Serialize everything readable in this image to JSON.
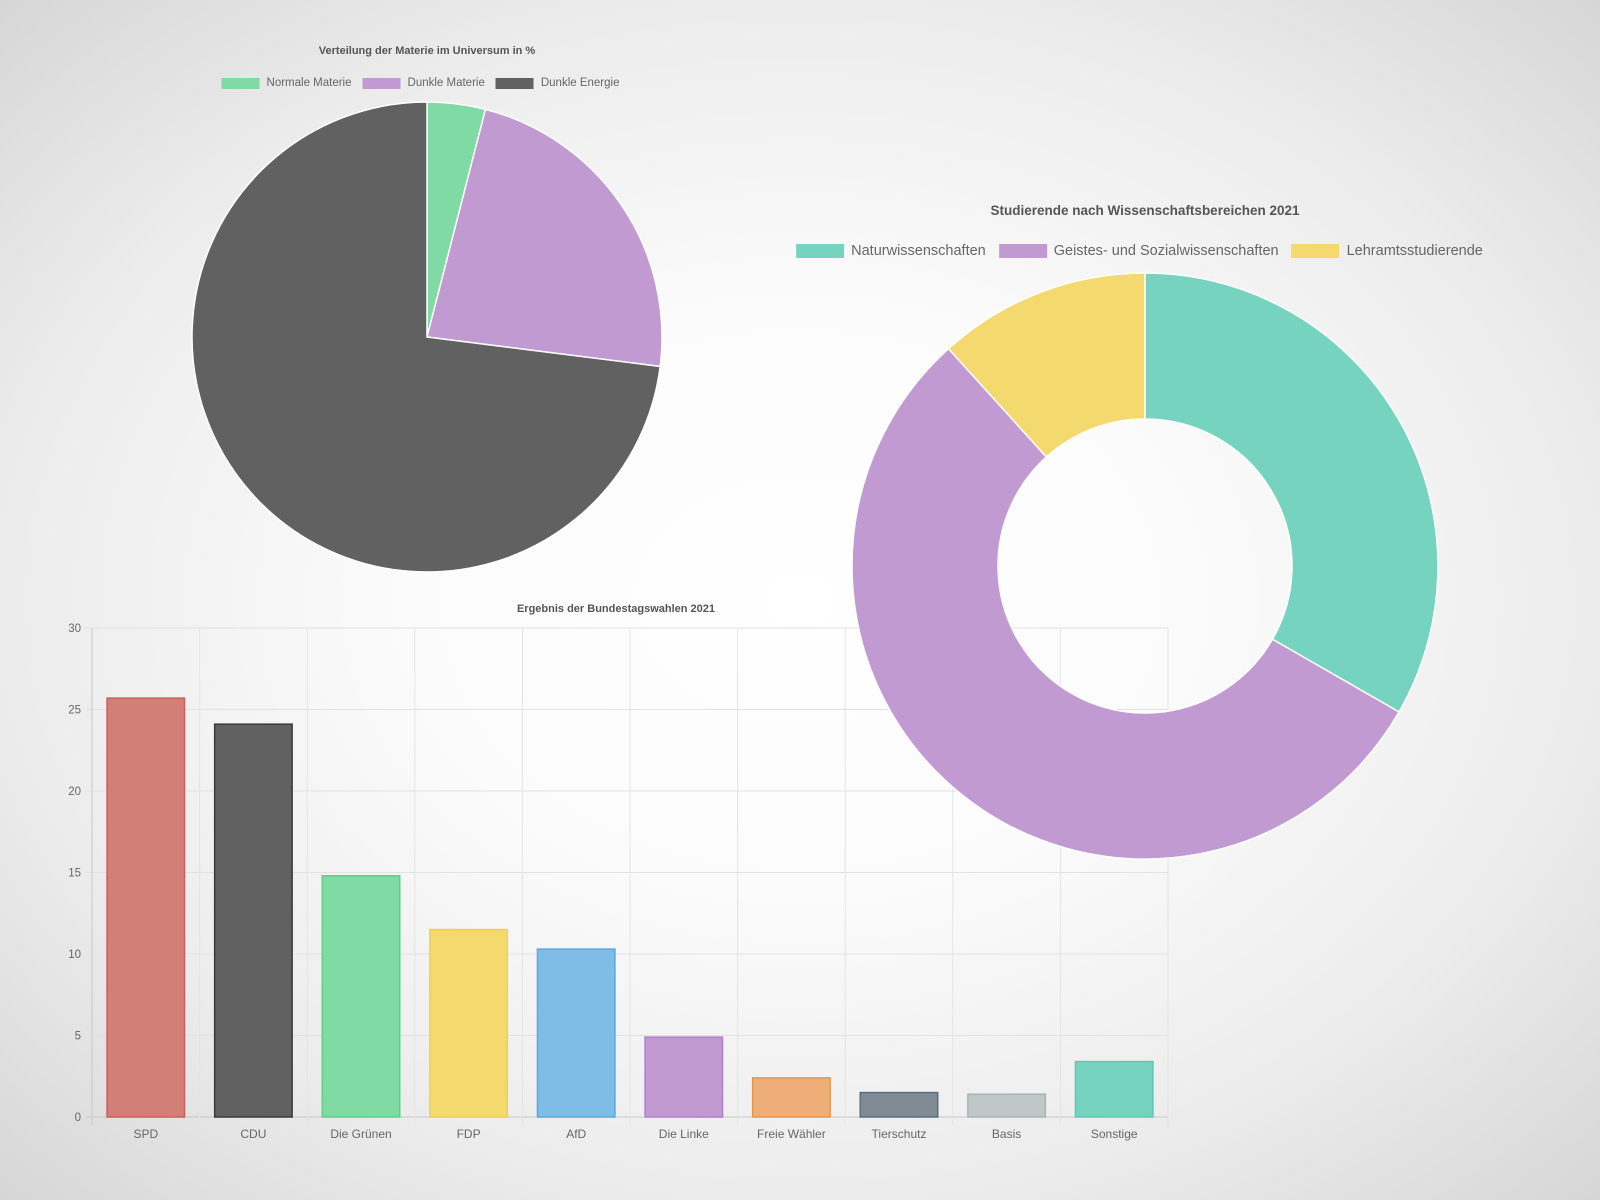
{
  "chart_data": [
    {
      "type": "pie",
      "title": "Verteilung der Materie im Universum in %",
      "categories": [
        "Normale Materie",
        "Dunkle Materie",
        "Dunkle Energie"
      ],
      "values": [
        4,
        23,
        73
      ],
      "colors": [
        "#7fdba3",
        "#c29ad2",
        "#616161"
      ],
      "legend_position": "top"
    },
    {
      "type": "doughnut",
      "title": "Studierende nach Wissenschaftsbereichen 2021",
      "categories": [
        "Naturwissenschaften",
        "Geistes- und Sozialwissenschaften",
        "Lehramtsstudierende"
      ],
      "values": [
        33.3,
        55,
        11.7
      ],
      "colors": [
        "#76d3c0",
        "#c29ad2",
        "#f4d96e"
      ],
      "legend_position": "top"
    },
    {
      "type": "bar",
      "title": "Ergebnis der Bundestagswahlen 2021",
      "categories": [
        "SPD",
        "CDU",
        "Die Grünen",
        "FDP",
        "AfD",
        "Die Linke",
        "Freie Wähler",
        "Tierschutz",
        "Basis",
        "Sonstige"
      ],
      "values": [
        25.7,
        24.1,
        14.8,
        11.5,
        10.3,
        4.9,
        2.4,
        1.5,
        1.4,
        3.4
      ],
      "colors": [
        "#d27f78",
        "#616161",
        "#7fdba3",
        "#f4d96e",
        "#80bde6",
        "#c29ad2",
        "#efae77",
        "#808b96",
        "#bfc7c7",
        "#76d3c0"
      ],
      "border_colors": [
        "#c9605a",
        "#3a3a3a",
        "#5fcf8a",
        "#f0cf55",
        "#5ea8dc",
        "#b27fc6",
        "#e8954f",
        "#5d6d7e",
        "#a9b3b3",
        "#5bc9b1"
      ],
      "xlabel": "",
      "ylabel": "",
      "ylim": [
        0,
        30
      ],
      "yticks": [
        0,
        5,
        10,
        15,
        20,
        25,
        30
      ],
      "grid": true,
      "legend": "none"
    }
  ]
}
